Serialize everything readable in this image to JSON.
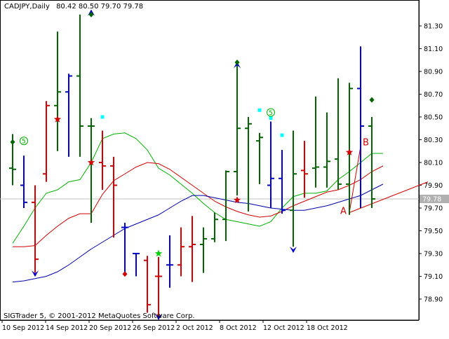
{
  "header": {
    "symbol": "CADJPY,Daily",
    "ohlc": "80.42 80.50 79.70 79.78"
  },
  "footer": {
    "copyright": "SIGTrader 5, © 2001-2012 MetaQuotes Software Corp."
  },
  "chart_data": {
    "type": "bar",
    "ylim": [
      78.73,
      81.42
    ],
    "y_ticks": [
      "81.30",
      "81.10",
      "80.90",
      "80.70",
      "80.50",
      "80.30",
      "80.10",
      "79.90",
      "79.70",
      "79.50",
      "79.30",
      "79.10",
      "78.90"
    ],
    "x_ticks": [
      "10 Sep 2012",
      "14 Sep 2012",
      "20 Sep 2012",
      "26 Sep 2012",
      "2 Oct 2012",
      "8 Oct 2012",
      "12 Oct 2012",
      "18 Oct 2012"
    ],
    "current_price": "79.78",
    "colors": {
      "up": "#006400",
      "down": "#d40000",
      "signal": "#0000cc",
      "grid": "#c0c0c0",
      "current_line": "#c0c0c0"
    },
    "bars": [
      {
        "o": 80.05,
        "h": 80.35,
        "l": 79.9,
        "c": 80.04,
        "color": "up"
      },
      {
        "o": 79.9,
        "h": 80.16,
        "l": 79.7,
        "c": 79.75,
        "color": "signal"
      },
      {
        "o": 79.75,
        "h": 79.9,
        "l": 79.13,
        "c": 79.25,
        "color": "down"
      },
      {
        "o": 80.0,
        "h": 80.64,
        "l": 79.93,
        "c": 80.6,
        "color": "down"
      },
      {
        "o": 80.6,
        "h": 81.25,
        "l": 80.2,
        "c": 80.72,
        "color": "up"
      },
      {
        "o": 80.72,
        "h": 80.88,
        "l": 80.15,
        "c": 80.86,
        "color": "signal"
      },
      {
        "o": 80.86,
        "h": 81.4,
        "l": 80.15,
        "c": 80.42,
        "color": "up"
      },
      {
        "o": 80.42,
        "h": 80.49,
        "l": 79.57,
        "c": 80.42,
        "color": "up"
      },
      {
        "o": 80.1,
        "h": 80.38,
        "l": 79.86,
        "c": 80.07,
        "color": "down"
      },
      {
        "o": 80.07,
        "h": 80.15,
        "l": 79.44,
        "c": 79.9,
        "color": "down"
      },
      {
        "o": 79.53,
        "h": 79.57,
        "l": 79.14,
        "c": 79.53,
        "color": "signal"
      },
      {
        "o": 79.3,
        "h": 79.3,
        "l": 79.1,
        "c": 79.3,
        "color": "signal"
      },
      {
        "o": 79.24,
        "h": 79.28,
        "l": 78.78,
        "c": 78.85,
        "color": "down"
      },
      {
        "o": 79.1,
        "h": 79.27,
        "l": 78.75,
        "c": 79.1,
        "color": "down"
      },
      {
        "o": 79.2,
        "h": 79.46,
        "l": 79.0,
        "c": 79.2,
        "color": "signal"
      },
      {
        "o": 79.2,
        "h": 79.53,
        "l": 79.1,
        "c": 79.36,
        "color": "down"
      },
      {
        "o": 79.36,
        "h": 79.63,
        "l": 79.05,
        "c": 79.38,
        "color": "down"
      },
      {
        "o": 79.38,
        "h": 79.53,
        "l": 79.13,
        "c": 79.43,
        "color": "up"
      },
      {
        "o": 79.43,
        "h": 79.66,
        "l": 79.4,
        "c": 79.6,
        "color": "up"
      },
      {
        "o": 79.6,
        "h": 80.03,
        "l": 79.41,
        "c": 80.02,
        "color": "up"
      },
      {
        "o": 80.02,
        "h": 80.97,
        "l": 79.81,
        "c": 80.4,
        "color": "up"
      },
      {
        "o": 80.4,
        "h": 80.5,
        "l": 79.67,
        "c": 80.44,
        "color": "up"
      },
      {
        "o": 80.29,
        "h": 80.36,
        "l": 79.91,
        "c": 80.32,
        "color": "up"
      },
      {
        "o": 79.9,
        "h": 80.46,
        "l": 79.7,
        "c": 79.96,
        "color": "signal"
      },
      {
        "o": 79.96,
        "h": 80.21,
        "l": 79.65,
        "c": 79.68,
        "color": "signal"
      },
      {
        "o": 79.68,
        "h": 80.38,
        "l": 79.36,
        "c": 80.0,
        "color": "up"
      },
      {
        "o": 80.03,
        "h": 80.29,
        "l": 79.79,
        "c": 80.0,
        "color": "down"
      },
      {
        "o": 80.05,
        "h": 80.68,
        "l": 79.88,
        "c": 80.06,
        "color": "up"
      },
      {
        "o": 80.06,
        "h": 80.54,
        "l": 79.88,
        "c": 80.11,
        "color": "up"
      },
      {
        "o": 80.13,
        "h": 80.84,
        "l": 79.86,
        "c": 79.91,
        "color": "up"
      },
      {
        "o": 79.91,
        "h": 80.8,
        "l": 79.64,
        "c": 80.75,
        "color": "up"
      },
      {
        "o": 80.75,
        "h": 81.12,
        "l": 79.7,
        "c": 80.42,
        "color": "signal"
      },
      {
        "o": 80.42,
        "h": 80.5,
        "l": 79.7,
        "c": 79.78,
        "color": "up"
      }
    ],
    "ma_green": [
      79.39,
      79.54,
      79.7,
      79.83,
      79.86,
      79.93,
      79.95,
      80.1,
      80.31,
      80.35,
      80.36,
      80.31,
      80.21,
      80.05,
      79.99,
      79.91,
      79.83,
      79.74,
      79.66,
      79.6,
      79.58,
      79.56,
      79.54,
      79.58,
      79.7,
      79.8,
      79.83,
      79.83,
      79.85,
      79.95,
      80.02,
      80.1,
      80.18,
      80.18
    ],
    "ma_red": [
      79.36,
      79.36,
      79.37,
      79.46,
      79.54,
      79.61,
      79.65,
      79.65,
      79.82,
      79.94,
      80.0,
      80.06,
      80.1,
      80.09,
      80.04,
      79.97,
      79.9,
      79.83,
      79.76,
      79.71,
      79.67,
      79.64,
      79.62,
      79.63,
      79.67,
      79.72,
      79.76,
      79.8,
      79.84,
      79.86,
      79.9,
      79.95,
      80.02,
      80.07
    ],
    "ma_blue": [
      79.05,
      79.06,
      79.08,
      79.1,
      79.14,
      79.2,
      79.27,
      79.34,
      79.4,
      79.46,
      79.52,
      79.56,
      79.6,
      79.64,
      79.7,
      79.76,
      79.81,
      79.81,
      79.79,
      79.77,
      79.75,
      79.74,
      79.72,
      79.7,
      79.69,
      79.68,
      79.68,
      79.7,
      79.72,
      79.75,
      79.78,
      79.81,
      79.86,
      79.91
    ],
    "markers": [
      {
        "type": "star",
        "i": 4,
        "y": 80.48,
        "color": "#d40000"
      },
      {
        "type": "star",
        "i": 7,
        "y": 80.1,
        "color": "#d40000"
      },
      {
        "type": "star",
        "i": 13,
        "y": 79.3,
        "color": "#00d000"
      },
      {
        "type": "star",
        "i": 20,
        "y": 79.77,
        "color": "#d40000"
      },
      {
        "type": "star",
        "i": 30,
        "y": 80.19,
        "color": "#d40000"
      },
      {
        "type": "arrow-down",
        "i": 2,
        "y": 79.12,
        "color": "#0000cc"
      },
      {
        "type": "arrow-down",
        "i": 13,
        "y": 78.74,
        "color": "#0000cc"
      },
      {
        "type": "arrow-down",
        "i": 25,
        "y": 79.33,
        "color": "#0000cc"
      },
      {
        "type": "arrow-up",
        "i": 7,
        "y": 81.42,
        "color": "#0000cc"
      },
      {
        "type": "arrow-up",
        "i": 20,
        "y": 80.96,
        "color": "#0000cc"
      },
      {
        "type": "diamond",
        "i": 0,
        "y": 80.28,
        "color": "#006400"
      },
      {
        "type": "diamond",
        "i": 7,
        "y": 81.4,
        "color": "#006400"
      },
      {
        "type": "diamond",
        "i": 10,
        "y": 79.12,
        "color": "#d40000"
      },
      {
        "type": "diamond",
        "i": 20,
        "y": 80.98,
        "color": "#006400"
      },
      {
        "type": "diamond",
        "i": 32,
        "y": 80.65,
        "color": "#006400"
      },
      {
        "type": "square",
        "i": 8,
        "y": 80.5,
        "color": "#00ffff"
      },
      {
        "type": "square",
        "i": 22,
        "y": 80.56,
        "color": "#00ffff"
      },
      {
        "type": "square",
        "i": 23,
        "y": 80.49,
        "color": "#00ffff"
      },
      {
        "type": "square",
        "i": 24,
        "y": 80.34,
        "color": "#00ffff"
      }
    ],
    "circles": [
      {
        "label": "5",
        "i": 1,
        "y": 80.29,
        "color": "#00b000"
      },
      {
        "label": "5",
        "i": 23,
        "y": 80.54,
        "color": "#00b000"
      }
    ],
    "ab_lines": [
      {
        "label": "A",
        "i": 30,
        "y": 79.66,
        "color": "#d40000"
      },
      {
        "label": "B",
        "i": 31,
        "y": 80.24,
        "color": "#d40000"
      }
    ],
    "ab_trend_end": {
      "i": 40,
      "y": 79.93
    }
  }
}
